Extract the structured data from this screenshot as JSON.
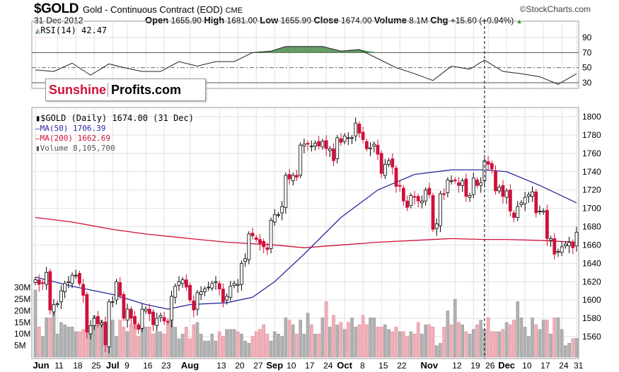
{
  "header": {
    "symbol": "$GOLD",
    "description": "Gold - Continuous Contract (EOD)",
    "exchange": "CME",
    "source": "©StockCharts.com",
    "date": "31-Dec-2012",
    "open_label": "Open",
    "open": "1655.90",
    "high_label": "High",
    "high": "1681.00",
    "low_label": "Low",
    "low": "1655.90",
    "close_label": "Close",
    "close": "1674.00",
    "volume_label": "Volume",
    "volume": "8.1M",
    "chg_label": "Chg",
    "chg": "+15.60 (+0.94%)"
  },
  "logo": {
    "part1": "Sunshine",
    "part2": "Profits.com"
  },
  "legend": {
    "rsi": "RSI(14) 42.47",
    "price": "$GOLD (Daily) 1674.00 (31 Dec)",
    "ma50": "MA(50) 1706.39",
    "ma200": "MA(200) 1662.69",
    "volume": "Volume 8,105,700"
  },
  "colors": {
    "up": "#000000",
    "down": "#d0103a",
    "ma50": "#2a2aa0",
    "ma200": "#d0103a",
    "rsi_fill": "#4a8a4a",
    "vol_up": "#b0b0b0",
    "vol_down": "#f0b0b8"
  },
  "chart_data": {
    "type": "candlestick",
    "year": 2012,
    "price_axis": {
      "ylim": [
        1540,
        1810
      ],
      "ticks": [
        1560,
        1580,
        1600,
        1620,
        1640,
        1660,
        1680,
        1700,
        1720,
        1740,
        1760,
        1780,
        1800
      ]
    },
    "volume_axis": {
      "ticks": [
        "5M",
        "10M",
        "15M",
        "20M",
        "25M",
        "30M"
      ]
    },
    "rsi_axis": {
      "ticks": [
        30,
        50,
        70,
        90
      ]
    },
    "x_ticks": [
      {
        "label": "Jun",
        "date": "Jun 1",
        "bold": true
      },
      {
        "label": "11",
        "date": "Jun 11"
      },
      {
        "label": "18",
        "date": "Jun 18"
      },
      {
        "label": "25",
        "date": "Jun 25"
      },
      {
        "label": "Jul",
        "date": "Jul 2",
        "bold": true
      },
      {
        "label": "9",
        "date": "Jul 9"
      },
      {
        "label": "16",
        "date": "Jul 16"
      },
      {
        "label": "23",
        "date": "Jul 23"
      },
      {
        "label": "Aug",
        "date": "Aug 1",
        "bold": true
      },
      {
        "label": "13",
        "date": "Aug 13"
      },
      {
        "label": "20",
        "date": "Aug 20"
      },
      {
        "label": "27",
        "date": "Aug 27"
      },
      {
        "label": "Sep",
        "date": "Sep 4",
        "bold": true
      },
      {
        "label": "10",
        "date": "Sep 10"
      },
      {
        "label": "17",
        "date": "Sep 17"
      },
      {
        "label": "24",
        "date": "Sep 24"
      },
      {
        "label": "Oct",
        "date": "Oct 1",
        "bold": true
      },
      {
        "label": "8",
        "date": "Oct 8"
      },
      {
        "label": "15",
        "date": "Oct 15"
      },
      {
        "label": "22",
        "date": "Oct 22"
      },
      {
        "label": "Nov",
        "date": "Nov 1",
        "bold": true
      },
      {
        "label": "12",
        "date": "Nov 12"
      },
      {
        "label": "19",
        "date": "Nov 19"
      },
      {
        "label": "26",
        "date": "Nov 26"
      },
      {
        "label": "Dec",
        "date": "Dec 3",
        "bold": true
      },
      {
        "label": "10",
        "date": "Dec 10"
      },
      {
        "label": "17",
        "date": "Dec 17"
      },
      {
        "label": "24",
        "date": "Dec 24"
      },
      {
        "label": "31",
        "date": "Dec 31"
      }
    ],
    "marker_date": "Nov 23",
    "months": [
      {
        "name": "Jun",
        "days": [
          1,
          4,
          5,
          6,
          7,
          8,
          11,
          12,
          13,
          14,
          15,
          18,
          19,
          20,
          21,
          22,
          25,
          26,
          27,
          28,
          29
        ],
        "close": [
          1622,
          1617,
          1618,
          1630,
          1589,
          1595,
          1596,
          1610,
          1618,
          1620,
          1627,
          1627,
          1618,
          1605,
          1565,
          1572,
          1580,
          1574,
          1575,
          1551,
          1598
        ],
        "volume_m": [
          29,
          13,
          9,
          17,
          17,
          22,
          10,
          15,
          14,
          13,
          13,
          11,
          11,
          12,
          21,
          12,
          18,
          14,
          16,
          5,
          23
        ]
      },
      {
        "name": "Jul",
        "days": [
          2,
          3,
          5,
          6,
          9,
          10,
          11,
          12,
          13,
          16,
          17,
          18,
          19,
          20,
          23,
          24,
          25,
          26,
          27,
          30,
          31
        ],
        "close": [
          1598,
          1620,
          1605,
          1580,
          1590,
          1580,
          1574,
          1568,
          1590,
          1590,
          1585,
          1573,
          1580,
          1583,
          1577,
          1576,
          1604,
          1615,
          1620,
          1622,
          1614
        ],
        "volume_m": [
          16,
          9,
          16,
          13,
          11,
          14,
          16,
          9,
          15,
          13,
          13,
          10,
          11,
          11,
          10,
          15,
          18,
          13,
          8,
          10,
          13
        ]
      },
      {
        "name": "Aug",
        "days": [
          1,
          2,
          3,
          6,
          7,
          8,
          9,
          10,
          13,
          14,
          15,
          16,
          17,
          20,
          21,
          22,
          23,
          24,
          27,
          28,
          29,
          30,
          31
        ],
        "close": [
          1600,
          1589,
          1608,
          1609,
          1612,
          1614,
          1618,
          1620,
          1612,
          1598,
          1604,
          1615,
          1618,
          1617,
          1640,
          1645,
          1672,
          1670,
          1666,
          1662,
          1658,
          1655,
          1687
        ],
        "volume_m": [
          8,
          14,
          15,
          10,
          7,
          7,
          10,
          7,
          11,
          9,
          12,
          12,
          12,
          11,
          10,
          7,
          6,
          9,
          11,
          12,
          14,
          10,
          7
        ]
      },
      {
        "name": "Sep",
        "days": [
          4,
          5,
          6,
          7,
          10,
          11,
          12,
          13,
          14,
          17,
          18,
          19,
          20,
          21,
          24,
          25,
          26,
          27,
          28
        ],
        "close": [
          1693,
          1693,
          1702,
          1736,
          1732,
          1736,
          1734,
          1769,
          1770,
          1770,
          1768,
          1771,
          1768,
          1773,
          1765,
          1765,
          1752,
          1777,
          1772
        ],
        "volume_m": [
          11,
          10,
          9,
          17,
          16,
          14,
          10,
          16,
          10,
          19,
          14,
          10,
          10,
          17,
          24,
          13,
          18,
          14,
          15
        ]
      },
      {
        "name": "Oct",
        "days": [
          1,
          2,
          3,
          4,
          5,
          8,
          9,
          10,
          11,
          12,
          15,
          16,
          17,
          18,
          19,
          22,
          23,
          24,
          25,
          26,
          29,
          30,
          31
        ],
        "close": [
          1779,
          1777,
          1777,
          1793,
          1782,
          1775,
          1765,
          1766,
          1770,
          1759,
          1738,
          1748,
          1752,
          1745,
          1724,
          1724,
          1708,
          1701,
          1714,
          1712,
          1708,
          1708,
          1720
        ],
        "volume_m": [
          12,
          15,
          17,
          13,
          14,
          18,
          14,
          17,
          17,
          13,
          13,
          14,
          12,
          11,
          13,
          11,
          11,
          9,
          11,
          10,
          15,
          10,
          14
        ]
      },
      {
        "name": "Nov",
        "days": [
          1,
          2,
          5,
          6,
          7,
          8,
          9,
          12,
          13,
          14,
          15,
          16,
          19,
          20,
          21,
          23,
          26,
          27,
          28,
          29,
          30
        ],
        "close": [
          1715,
          1677,
          1683,
          1716,
          1715,
          1731,
          1730,
          1730,
          1725,
          1730,
          1713,
          1714,
          1733,
          1725,
          1728,
          1752,
          1748,
          1743,
          1719,
          1723,
          1713
        ],
        "volume_m": [
          14,
          13,
          5,
          6,
          13,
          20,
          14,
          25,
          15,
          14,
          11,
          10,
          12,
          14,
          16,
          12,
          17,
          11,
          11,
          11,
          12
        ]
      },
      {
        "name": "Dec",
        "days": [
          3,
          4,
          5,
          6,
          7,
          10,
          11,
          12,
          13,
          14,
          17,
          18,
          19,
          20,
          21,
          24,
          26,
          27,
          28,
          31
        ],
        "close": [
          1719,
          1697,
          1690,
          1702,
          1706,
          1712,
          1715,
          1718,
          1695,
          1697,
          1697,
          1667,
          1667,
          1650,
          1653,
          1658,
          1661,
          1663,
          1657,
          1674
        ],
        "volume_m": [
          15,
          14,
          16,
          24,
          17,
          13,
          9,
          17,
          14,
          12,
          16,
          16,
          10,
          17,
          17,
          12,
          5,
          6,
          8,
          8.1
        ]
      }
    ],
    "ma50": [
      [
        "Jun 1",
        1625
      ],
      [
        "Jun 15",
        1615
      ],
      [
        "Jul 2",
        1606
      ],
      [
        "Jul 16",
        1595
      ],
      [
        "Jul 24",
        1590
      ],
      [
        "Aug 1",
        1595
      ],
      [
        "Aug 15",
        1597
      ],
      [
        "Aug 24",
        1603
      ],
      [
        "Sep 4",
        1620
      ],
      [
        "Sep 14",
        1650
      ],
      [
        "Sep 28",
        1690
      ],
      [
        "Oct 12",
        1720
      ],
      [
        "Oct 26",
        1737
      ],
      [
        "Nov 9",
        1742
      ],
      [
        "Nov 23",
        1742
      ],
      [
        "Dec 3",
        1740
      ],
      [
        "Dec 14",
        1725
      ],
      [
        "Dec 31",
        1706
      ]
    ],
    "ma200": [
      [
        "Jun 1",
        1690
      ],
      [
        "Jun 15",
        1685
      ],
      [
        "Jul 2",
        1677
      ],
      [
        "Jul 16",
        1672
      ],
      [
        "Aug 1",
        1667
      ],
      [
        "Aug 15",
        1663
      ],
      [
        "Sep 4",
        1660
      ],
      [
        "Sep 14",
        1657
      ],
      [
        "Sep 28",
        1660
      ],
      [
        "Oct 12",
        1663
      ],
      [
        "Oct 26",
        1665
      ],
      [
        "Nov 9",
        1667
      ],
      [
        "Nov 23",
        1666
      ],
      [
        "Dec 3",
        1666
      ],
      [
        "Dec 14",
        1665
      ],
      [
        "Dec 31",
        1663
      ]
    ],
    "rsi": [
      [
        "Jun 1",
        47
      ],
      [
        "Jun 8",
        45
      ],
      [
        "Jun 15",
        56
      ],
      [
        "Jun 22",
        40
      ],
      [
        "Jun 29",
        55
      ],
      [
        "Jul 6",
        50
      ],
      [
        "Jul 13",
        45
      ],
      [
        "Jul 20",
        45
      ],
      [
        "Jul 27",
        58
      ],
      [
        "Aug 3",
        52
      ],
      [
        "Aug 10",
        58
      ],
      [
        "Aug 17",
        58
      ],
      [
        "Aug 24",
        70
      ],
      [
        "Aug 31",
        72
      ],
      [
        "Sep 7",
        78
      ],
      [
        "Sep 14",
        78
      ],
      [
        "Sep 21",
        78
      ],
      [
        "Sep 28",
        72
      ],
      [
        "Oct 5",
        74
      ],
      [
        "Oct 12",
        62
      ],
      [
        "Oct 19",
        50
      ],
      [
        "Oct 26",
        42
      ],
      [
        "Nov 2",
        33
      ],
      [
        "Nov 9",
        52
      ],
      [
        "Nov 16",
        48
      ],
      [
        "Nov 23",
        60
      ],
      [
        "Nov 30",
        45
      ],
      [
        "Dec 7",
        42
      ],
      [
        "Dec 14",
        38
      ],
      [
        "Dec 21",
        28
      ],
      [
        "Dec 31",
        42
      ]
    ]
  }
}
